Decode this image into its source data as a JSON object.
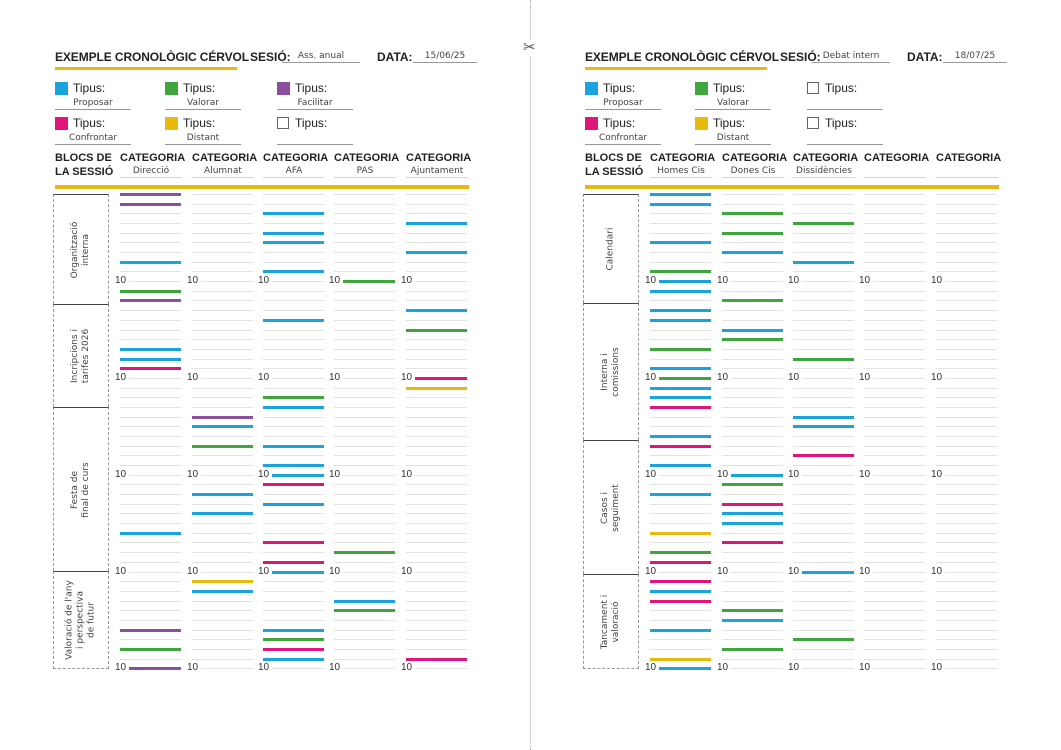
{
  "colors": {
    "proposar": "#1ba3e0",
    "valorar": "#3ea63c",
    "facilitar": "#8c4f9f",
    "confrontar": "#e0157c",
    "distant": "#e8b90f",
    "accent": "#e8b90f"
  },
  "icons": {
    "cut": "scissors-icon"
  },
  "labels": {
    "title": "EXEMPLE CRONOLÒGIC CÉRVOL",
    "session": "SESIÓ:",
    "date": "DATA:",
    "tipus": "Tipus:",
    "blocs_line1": "BLOCS DE",
    "blocs_line2": "LA SESSIÓ",
    "categoria": "CATEGORIA",
    "tick": "10"
  },
  "pages": [
    {
      "session": "Ass. anual",
      "date": "15/06/25",
      "legend": [
        {
          "type": "proposar",
          "value": "Proposar"
        },
        {
          "type": "valorar",
          "value": "Valorar"
        },
        {
          "type": "facilitar",
          "value": "Facilitar"
        },
        {
          "type": "confrontar",
          "value": "Confrontar"
        },
        {
          "type": "distant",
          "value": "Distant"
        },
        {
          "type": "empty",
          "value": ""
        }
      ],
      "categories": [
        "Direcció",
        "Alumnat",
        "AFA",
        "PAS",
        "Ajuntament"
      ],
      "blocks": [
        "Organització\ninterna",
        "Incripcions i\ntarifes 2026",
        "Festa de\nfinal de curs",
        "Valoració de l'any\ni perspectiva\nde futur"
      ],
      "bars": [
        [
          [
            0,
            "facilitar"
          ],
          [
            1,
            "facilitar"
          ],
          [
            7,
            "proposar"
          ],
          [
            10,
            "valorar"
          ],
          [
            11,
            "facilitar"
          ],
          [
            16,
            "proposar"
          ],
          [
            17,
            "proposar"
          ],
          [
            18,
            "confrontar"
          ],
          [
            35,
            "proposar"
          ],
          [
            45,
            "facilitar"
          ],
          [
            47,
            "valorar"
          ],
          [
            49,
            "facilitar"
          ]
        ],
        [
          [
            23,
            "facilitar"
          ],
          [
            24,
            "proposar"
          ],
          [
            26,
            "valorar"
          ],
          [
            31,
            "proposar"
          ],
          [
            33,
            "proposar"
          ],
          [
            40,
            "distant"
          ],
          [
            41,
            "proposar"
          ]
        ],
        [
          [
            2,
            "proposar"
          ],
          [
            4,
            "proposar"
          ],
          [
            5,
            "proposar"
          ],
          [
            8,
            "proposar"
          ],
          [
            13,
            "proposar"
          ],
          [
            21,
            "valorar"
          ],
          [
            22,
            "proposar"
          ],
          [
            26,
            "proposar"
          ],
          [
            28,
            "proposar"
          ],
          [
            29,
            "proposar"
          ],
          [
            30,
            "confrontar"
          ],
          [
            32,
            "proposar"
          ],
          [
            36,
            "confrontar"
          ],
          [
            38,
            "confrontar"
          ],
          [
            39,
            "proposar"
          ],
          [
            45,
            "proposar"
          ],
          [
            46,
            "valorar"
          ],
          [
            47,
            "confrontar"
          ],
          [
            48,
            "proposar"
          ]
        ],
        [
          [
            9,
            "valorar"
          ],
          [
            37,
            "valorar"
          ],
          [
            42,
            "proposar"
          ],
          [
            43,
            "valorar"
          ]
        ],
        [
          [
            3,
            "proposar"
          ],
          [
            6,
            "proposar"
          ],
          [
            12,
            "proposar"
          ],
          [
            14,
            "valorar"
          ],
          [
            19,
            "confrontar"
          ],
          [
            20,
            "distant"
          ],
          [
            48,
            "confrontar"
          ]
        ]
      ]
    },
    {
      "session": "Debat intern",
      "date": "18/07/25",
      "legend": [
        {
          "type": "proposar",
          "value": "Proposar"
        },
        {
          "type": "valorar",
          "value": "Valorar"
        },
        {
          "type": "empty",
          "value": ""
        },
        {
          "type": "confrontar",
          "value": "Confrontar"
        },
        {
          "type": "distant",
          "value": "Distant"
        },
        {
          "type": "empty",
          "value": ""
        }
      ],
      "categories": [
        "Homes Cis",
        "Dones Cis",
        "Dissidències",
        "",
        ""
      ],
      "blocks": [
        "Calendari",
        "Interna i\ncomissions",
        "Casos i\nseguiment",
        "Tancament i\nvaloració"
      ],
      "bars": [
        [
          [
            0,
            "proposar"
          ],
          [
            1,
            "proposar"
          ],
          [
            5,
            "proposar"
          ],
          [
            8,
            "valorar"
          ],
          [
            9,
            "proposar"
          ],
          [
            10,
            "proposar"
          ],
          [
            12,
            "proposar"
          ],
          [
            13,
            "proposar"
          ],
          [
            16,
            "valorar"
          ],
          [
            18,
            "proposar"
          ],
          [
            19,
            "valorar"
          ],
          [
            20,
            "proposar"
          ],
          [
            21,
            "proposar"
          ],
          [
            22,
            "confrontar"
          ],
          [
            25,
            "proposar"
          ],
          [
            26,
            "confrontar"
          ],
          [
            28,
            "proposar"
          ],
          [
            31,
            "proposar"
          ],
          [
            35,
            "distant"
          ],
          [
            37,
            "valorar"
          ],
          [
            38,
            "confrontar"
          ],
          [
            40,
            "confrontar"
          ],
          [
            41,
            "proposar"
          ],
          [
            42,
            "confrontar"
          ],
          [
            45,
            "proposar"
          ],
          [
            48,
            "distant"
          ],
          [
            49,
            "proposar"
          ]
        ],
        [
          [
            2,
            "valorar"
          ],
          [
            4,
            "valorar"
          ],
          [
            6,
            "proposar"
          ],
          [
            11,
            "valorar"
          ],
          [
            14,
            "proposar"
          ],
          [
            15,
            "valorar"
          ],
          [
            29,
            "proposar"
          ],
          [
            30,
            "valorar"
          ],
          [
            32,
            "confrontar"
          ],
          [
            33,
            "proposar"
          ],
          [
            34,
            "proposar"
          ],
          [
            36,
            "confrontar"
          ],
          [
            43,
            "valorar"
          ],
          [
            44,
            "proposar"
          ],
          [
            47,
            "valorar"
          ]
        ],
        [
          [
            3,
            "valorar"
          ],
          [
            7,
            "proposar"
          ],
          [
            17,
            "valorar"
          ],
          [
            23,
            "proposar"
          ],
          [
            24,
            "proposar"
          ],
          [
            27,
            "confrontar"
          ],
          [
            39,
            "proposar"
          ],
          [
            46,
            "valorar"
          ]
        ],
        [],
        []
      ]
    }
  ]
}
